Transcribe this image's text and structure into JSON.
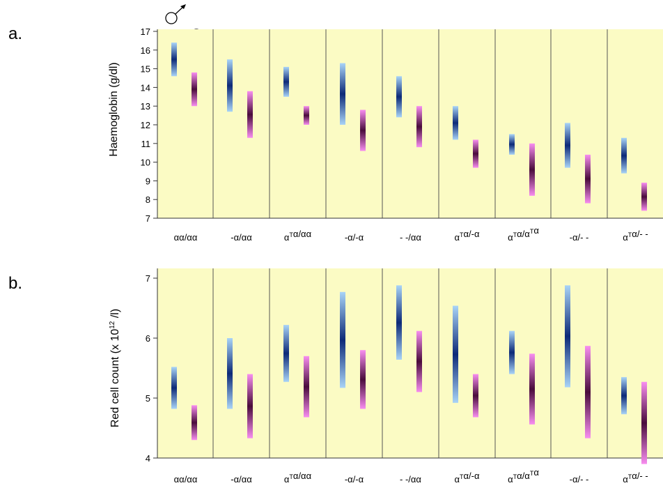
{
  "colors": {
    "panel_bg": "#fbfbc4",
    "axis": "#333333",
    "male_dark": "#0d2a78",
    "male_light": "#a9d4f7",
    "female_dark": "#4a0c3c",
    "female_light": "#f88ef0"
  },
  "symbols": {
    "male": "male-symbol-icon",
    "female": "female-symbol-icon"
  },
  "chart_data": [
    {
      "type": "range-bar",
      "panel_label": "a.",
      "ylabel": "Haemoglobin (g/dl)",
      "ylim": [
        7,
        17
      ],
      "yticks": [
        7,
        8,
        9,
        10,
        11,
        12,
        13,
        14,
        15,
        16,
        17
      ],
      "categories": [
        {
          "base": "αα/αα",
          "sup": ""
        },
        {
          "base": "-α/αα",
          "sup": ""
        },
        {
          "base": "α",
          "sup": "T",
          "rest": "α/αα"
        },
        {
          "base": "-α/-α",
          "sup": ""
        },
        {
          "base": "- -/αα",
          "sup": ""
        },
        {
          "base": "α",
          "sup": "T",
          "rest": "α/-α"
        },
        {
          "base": "α",
          "sup": "T",
          "rest": "α/α",
          "sup2": "T",
          "rest2": "α"
        },
        {
          "base": "-α/- -",
          "sup": ""
        },
        {
          "base": "α",
          "sup": "T",
          "rest": "α/- -"
        }
      ],
      "series": [
        {
          "name": "male",
          "low": [
            14.6,
            12.7,
            13.5,
            12.0,
            12.4,
            11.2,
            10.4,
            9.7,
            9.4
          ],
          "mean": [
            15.5,
            14.1,
            14.3,
            13.7,
            13.5,
            12.1,
            11.0,
            10.9,
            10.3
          ],
          "high": [
            16.4,
            15.5,
            15.1,
            15.3,
            14.6,
            13.0,
            11.5,
            12.1,
            11.3
          ]
        },
        {
          "name": "female",
          "low": [
            13.0,
            11.3,
            12.0,
            10.6,
            10.8,
            9.7,
            8.2,
            7.8,
            7.4
          ],
          "mean": [
            13.9,
            12.5,
            12.5,
            11.7,
            11.9,
            10.5,
            9.6,
            9.1,
            8.2
          ],
          "high": [
            14.8,
            13.8,
            13.0,
            12.8,
            13.0,
            11.2,
            11.0,
            10.4,
            8.9
          ]
        }
      ]
    },
    {
      "type": "range-bar",
      "panel_label": "b.",
      "ylabel": "Red cell count (x 10^12 /l)",
      "ylabel_parts": {
        "pre": "Red cell count (x 10",
        "sup": "12",
        "post": " /l)"
      },
      "ylim": [
        4,
        7.1
      ],
      "yticks": [
        4,
        5,
        6,
        7
      ],
      "categories": [
        {
          "base": "αα/αα",
          "sup": ""
        },
        {
          "base": "-α/αα",
          "sup": ""
        },
        {
          "base": "α",
          "sup": "T",
          "rest": "α/αα"
        },
        {
          "base": "-α/-α",
          "sup": ""
        },
        {
          "base": "- -/αα",
          "sup": ""
        },
        {
          "base": "α",
          "sup": "T",
          "rest": "α/-α"
        },
        {
          "base": "α",
          "sup": "T",
          "rest": "α/α",
          "sup2": "T",
          "rest2": "α"
        },
        {
          "base": "-α/- -",
          "sup": ""
        },
        {
          "base": "α",
          "sup": "T",
          "rest": "α/- -"
        }
      ],
      "series": [
        {
          "name": "male",
          "low": [
            4.82,
            4.82,
            5.27,
            5.17,
            5.64,
            4.92,
            5.4,
            5.18,
            4.73
          ],
          "mean": [
            5.17,
            5.4,
            5.75,
            5.97,
            6.26,
            5.73,
            5.76,
            6.03,
            5.04
          ],
          "high": [
            5.52,
            6.0,
            6.22,
            6.77,
            6.88,
            6.54,
            6.12,
            6.88,
            5.35
          ]
        },
        {
          "name": "female",
          "low": [
            4.3,
            4.33,
            4.68,
            4.82,
            5.1,
            4.68,
            4.56,
            4.33,
            3.9
          ],
          "mean": [
            4.59,
            4.85,
            5.19,
            5.31,
            5.61,
            5.04,
            5.15,
            5.1,
            4.57
          ],
          "high": [
            4.88,
            5.4,
            5.7,
            5.8,
            6.12,
            5.4,
            5.74,
            5.87,
            5.27
          ]
        }
      ]
    }
  ]
}
